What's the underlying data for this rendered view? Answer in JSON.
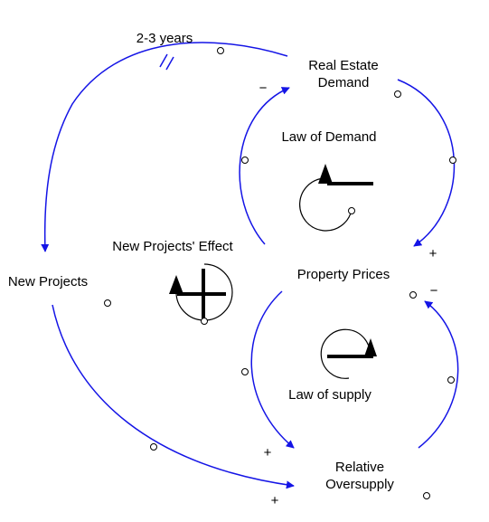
{
  "colors": {
    "link": "#1414e6",
    "text": "#000000",
    "background": "#ffffff"
  },
  "nodes": {
    "real_estate_demand": [
      "Real Estate",
      "Demand"
    ],
    "new_projects": "New Projects",
    "property_prices": "Property Prices",
    "relative_oversupply": [
      "Relative",
      "Oversupply"
    ]
  },
  "loops": {
    "law_of_demand": {
      "label": "Law of Demand",
      "icon": "balancing-loop-ccw-icon"
    },
    "new_projects_effect": {
      "label": "New Projects' Effect",
      "icon": "reinforcing-loop-icon"
    },
    "law_of_supply": {
      "label": "Law of supply",
      "icon": "balancing-loop-cw-icon"
    }
  },
  "delay": {
    "label": "2-3 years",
    "icon": "delay-marker-icon"
  },
  "polarities": {
    "demand_to_new_projects": "",
    "demand_to_prices": "+",
    "prices_to_demand": "−",
    "prices_to_oversupply": "+",
    "oversupply_to_prices": "−",
    "new_projects_to_oversupply": "+"
  }
}
